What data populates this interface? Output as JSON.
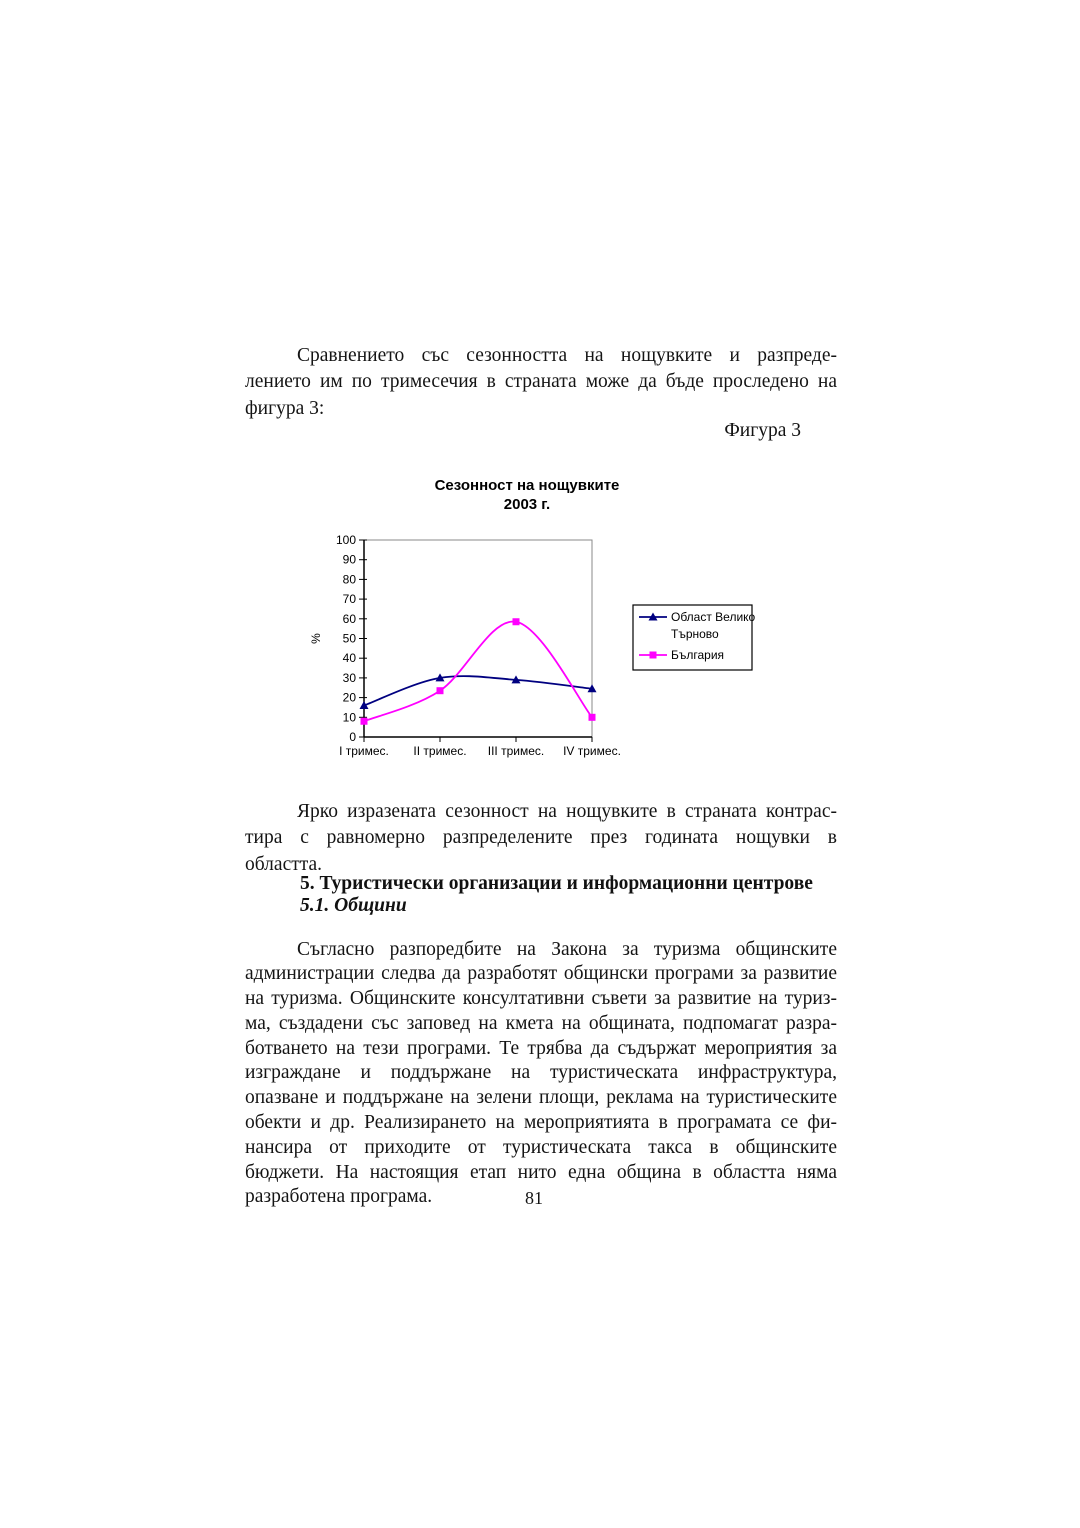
{
  "text": {
    "p1_lines": [
      "Сравнението със сезонността на нощувките и разпреде-",
      "лението им по тримесечия в страната може да бъде проследено на",
      "фигура 3:"
    ],
    "figure_label": "Фигура 3",
    "p2_lines": [
      "Ярко изразената сезонност на нощувките в страната контрас-",
      "тира с равномерно разпределените през годината нощувки в",
      "областта."
    ],
    "heading_section": "5. Туристически организации и информационни центрове",
    "heading_sub": "5.1. Общини",
    "p3_lines": [
      "Съгласно разпоредбите на Закона за туризма общинските",
      "администрации следва да разработят общински програми за развитие",
      "на туризма. Общинските консултативни съвети за развитие на туриз-",
      "ма, създадени със заповед на кмета на общината, подпомагат разра-",
      "ботването на тези програми. Те трябва да съдържат мероприятия за",
      "изграждане и поддържане на туристическата инфраструктура,",
      "опазване и поддържане на зелени площи, реклама на туристическите",
      "обекти и др. Реализирането на мероприятията в програмата се фи-",
      "нансира от приходите от туристическата такса в общинските",
      "бюджети. На настоящия етап нито една община в областта няма",
      "разработена програма."
    ],
    "page_number": "81"
  },
  "chart_data": {
    "type": "line",
    "title": "Сезонност на нощувките",
    "subtitle": "2003 г.",
    "categories": [
      "I тримес.",
      "II тримес.",
      "III тримес.",
      "IV тримес."
    ],
    "series": [
      {
        "name": "Област Велико Търново",
        "legend_lines": [
          "Област Велико",
          "Търново"
        ],
        "values": [
          16,
          30,
          29,
          24.5
        ],
        "color": "#000080",
        "marker": "triangle"
      },
      {
        "name": "България",
        "legend_lines": [
          "България"
        ],
        "values": [
          8,
          23.5,
          58.5,
          10
        ],
        "color": "#FF00FF",
        "marker": "square"
      }
    ],
    "xlabel": "",
    "ylabel": "%",
    "ylim": [
      0,
      100
    ],
    "ytick_step": 10,
    "grid": false,
    "legend_position": "right",
    "line_style": "smooth"
  }
}
